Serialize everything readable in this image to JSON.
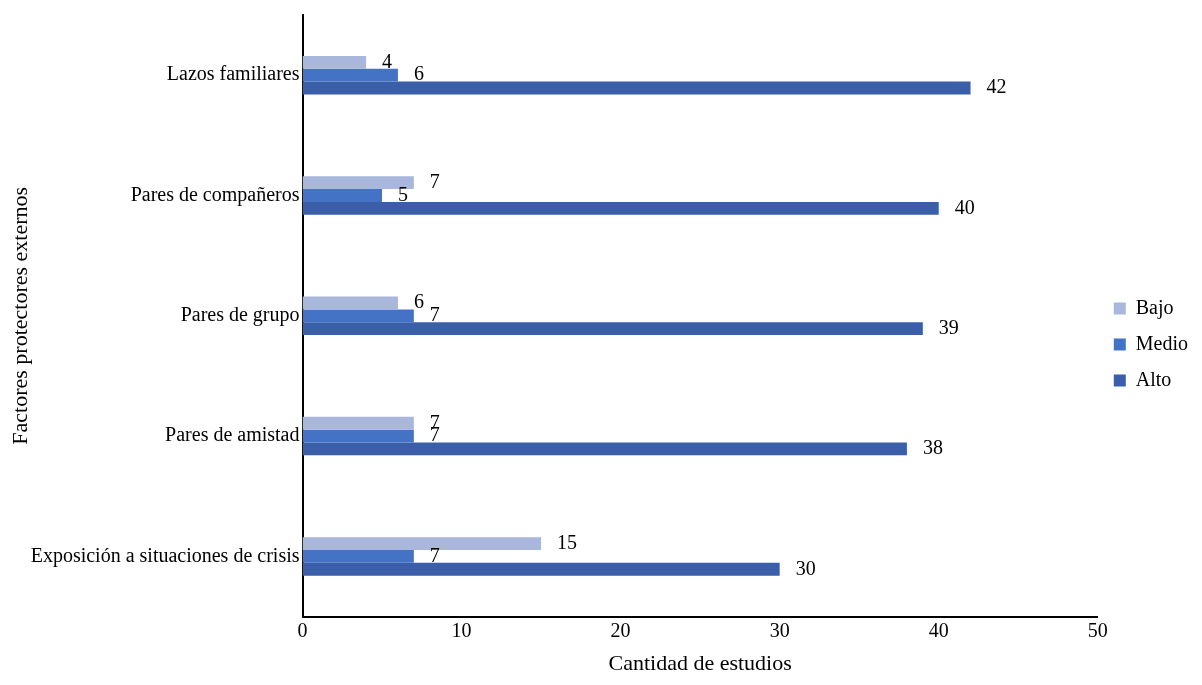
{
  "chart_data": {
    "type": "bar",
    "orientation": "horizontal",
    "xlabel": "Cantidad de estudios",
    "ylabel": "Factores protectores externos",
    "categories": [
      "Lazos familiares",
      "Pares de compañeros",
      "Pares de grupo",
      "Pares de amistad",
      "Exposición a situaciones de crisis"
    ],
    "series": [
      {
        "name": "Bajo",
        "color": "#a9b7dc",
        "values": [
          4,
          7,
          6,
          7,
          15
        ]
      },
      {
        "name": "Medio",
        "color": "#4472c4",
        "values": [
          6,
          5,
          7,
          7,
          7
        ]
      },
      {
        "name": "Alto",
        "color": "#3a5ea8",
        "values": [
          42,
          40,
          39,
          38,
          30
        ]
      }
    ],
    "xlim": [
      0,
      50
    ],
    "xticks": [
      0,
      10,
      20,
      30,
      40,
      50
    ],
    "grid": false,
    "legend": "right",
    "data_labels": true
  }
}
